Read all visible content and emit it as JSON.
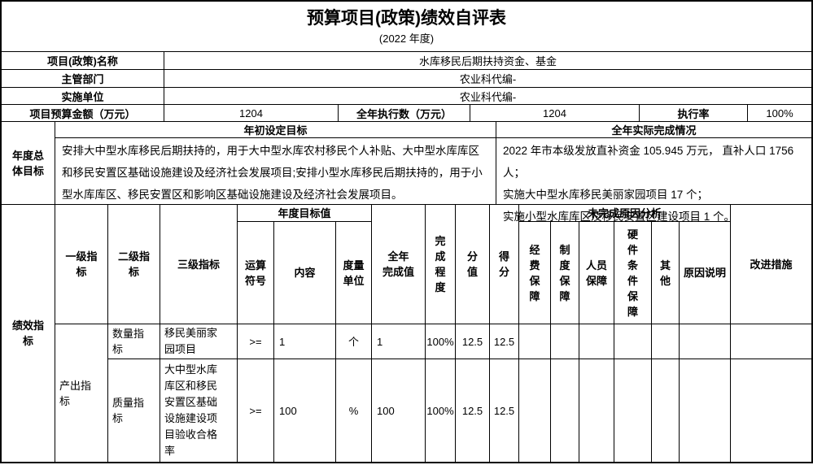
{
  "title": "预算项目(政策)绩效自评表",
  "subtitle": "(2022 年度)",
  "info": {
    "project_name_label": "项目(政策)名称",
    "project_name": "水库移民后期扶持资金、基金",
    "dept_label": "主管部门",
    "dept": "农业科代编-",
    "unit_label": "实施单位",
    "unit": "农业科代编-",
    "budget_label": "项目预算金额（万元）",
    "budget": "1204",
    "executed_label": "全年执行数（万元）",
    "executed": "1204",
    "rate_label": "执行率",
    "rate": "100%"
  },
  "annual_goal": {
    "label": "年度总体目标",
    "planned_header": "年初设定目标",
    "planned_text": "安排大中型水库移民后期扶持的，用于大中型水库农村移民个人补贴、大中型水库库区和移民安置区基础设施建设及经济社会发展项目;安排小型水库移民后期扶持的，用于小型水库库区、移民安置区和影响区基础设施建设及经济社会发展项目。",
    "actual_header": "全年实际完成情况",
    "actual_text": "2022 年市本级发放直补资金 105.945 万元， 直补人口 1756 人；\n实施大中型水库移民美丽家园项目 17 个；\n实施小型水库库区及移民安置区建设项目 1 个。"
  },
  "indicators": {
    "section_label": "绩效指标",
    "headers": {
      "level1": "一级指标",
      "level2": "二级指标",
      "level3": "三级指标",
      "annual_target_group": "年度目标值",
      "operator": "运算符号",
      "content": "内容",
      "unit": "度量单位",
      "completed_value": "全年\n完成值",
      "completion_degree": "完成程度",
      "score_total": "分值",
      "score": "得分",
      "unfinished_group": "未完成原因分析",
      "fund": "经费保障",
      "system": "制度保障",
      "staff": "人员保障",
      "hardware": "硬件条件保障",
      "other": "其他",
      "reason": "原因说明",
      "improve": "改进措施"
    },
    "rows": [
      {
        "level1": "产出指标",
        "level2": "数量指标",
        "level3": "移民美丽家园项目",
        "operator": ">=",
        "content": "1",
        "unit": "个",
        "completed": "1",
        "degree": "100%",
        "score_total": "12.5",
        "score": "12.5"
      },
      {
        "level2": "质量指标",
        "level3": "大中型水库库区和移民安置区基础设施建设项目验收合格率",
        "operator": ">=",
        "content": "100",
        "unit": "%",
        "completed": "100",
        "degree": "100%",
        "score_total": "12.5",
        "score": "12.5"
      }
    ]
  }
}
